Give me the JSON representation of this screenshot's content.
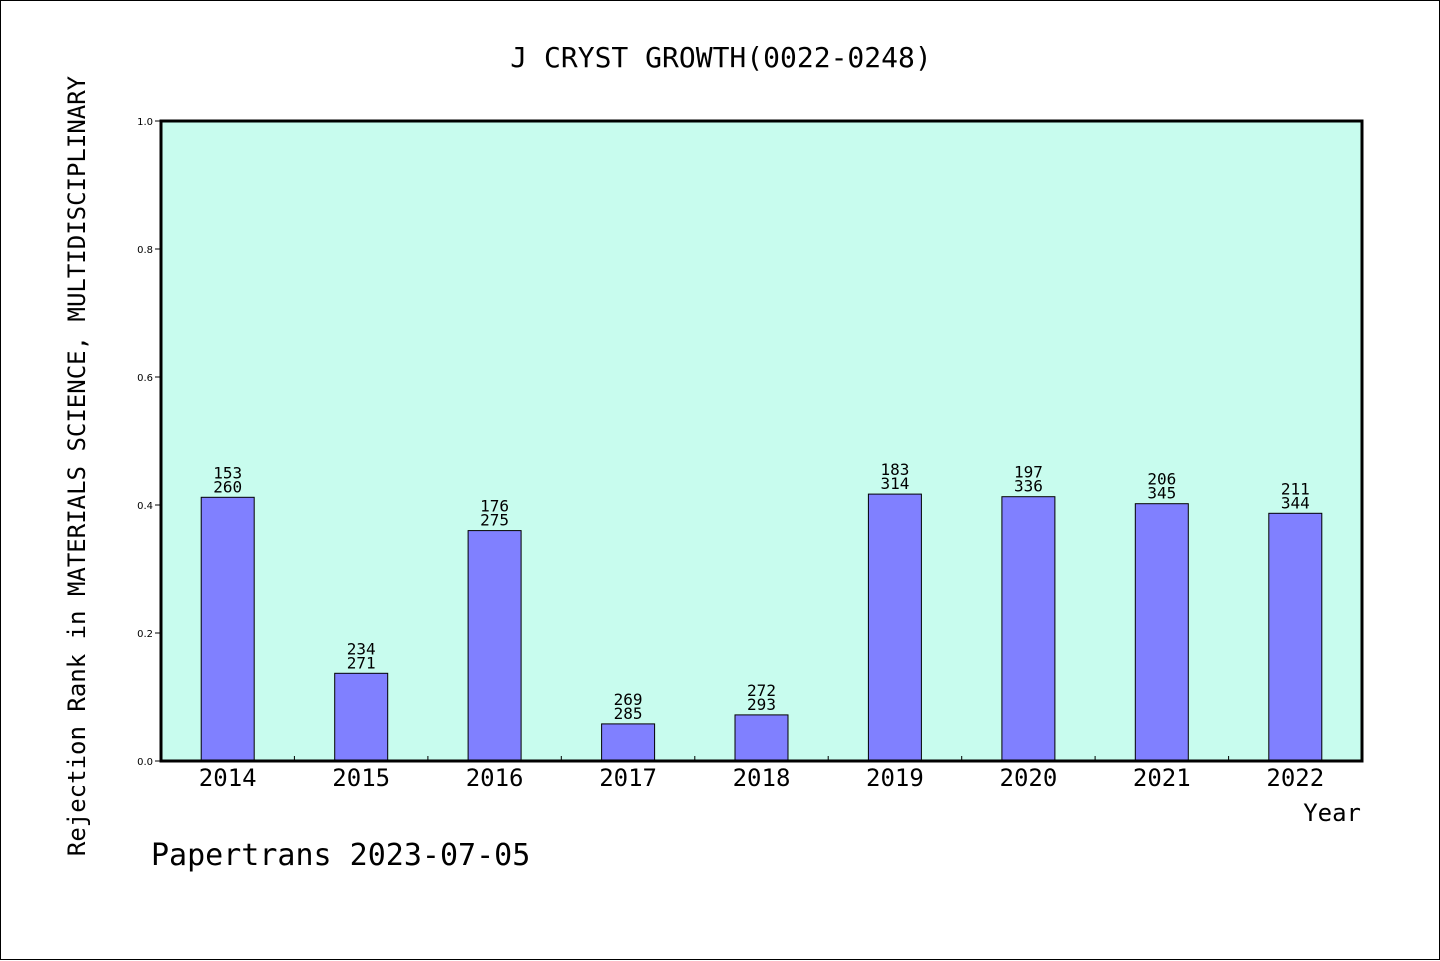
{
  "chart_data": {
    "type": "bar",
    "title": "J CRYST GROWTH(0022-0248)",
    "xlabel": "Year",
    "ylabel": "Rejection Rank in MATERIALS SCIENCE, MULTIDISCIPLINARY",
    "ylim": [
      0,
      1.0
    ],
    "yticks": [
      "0.0",
      "0.2",
      "0.4",
      "0.6",
      "0.8",
      "1.0"
    ],
    "grid": false,
    "categories": [
      "2014",
      "2015",
      "2016",
      "2017",
      "2018",
      "2019",
      "2020",
      "2021",
      "2022"
    ],
    "values": [
      0.412,
      0.137,
      0.36,
      0.058,
      0.072,
      0.417,
      0.413,
      0.402,
      0.387
    ],
    "labels_top": [
      "153",
      "234",
      "176",
      "269",
      "272",
      "183",
      "197",
      "206",
      "211"
    ],
    "labels_bottom": [
      "260",
      "271",
      "275",
      "285",
      "293",
      "314",
      "336",
      "345",
      "344"
    ],
    "colors": {
      "plot_bg": "#c8fcee",
      "bar": "#8080ff",
      "bar_edge": "#000000"
    }
  },
  "footer": {
    "text": "Papertrans 2023-07-05"
  }
}
